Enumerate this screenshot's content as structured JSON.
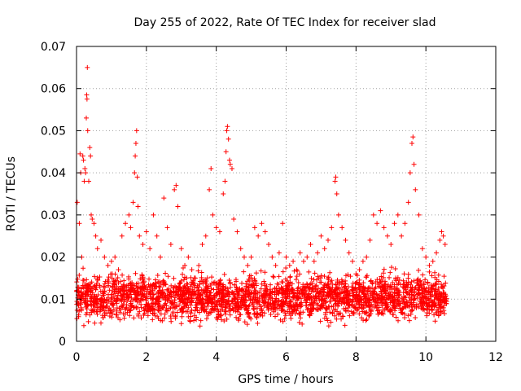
{
  "chart_data": {
    "type": "scatter",
    "title": "Day 255 of 2022, Rate Of TEC Index for receiver slad",
    "xlabel": "GPS time / hours",
    "ylabel": "ROTI / TECUs",
    "xlim": [
      0,
      12
    ],
    "ylim": [
      0,
      0.07
    ],
    "xticks": [
      0,
      2,
      4,
      6,
      8,
      10,
      12
    ],
    "xtick_labels": [
      "0",
      "2",
      "4",
      "6",
      "8",
      "10",
      "12"
    ],
    "yticks": [
      0,
      0.01,
      0.02,
      0.03,
      0.04,
      0.05,
      0.06,
      0.07
    ],
    "ytick_labels": [
      "0",
      "0.01",
      "0.02",
      "0.03",
      "0.04",
      "0.05",
      "0.06",
      "0.07"
    ],
    "grid": true,
    "marker": "+",
    "color": "#ff0000",
    "series": [
      {
        "points": [
          [
            0.02,
            0.033
          ],
          [
            0.05,
            0.012
          ],
          [
            0.08,
            0.028
          ],
          [
            0.1,
            0.0445
          ],
          [
            0.12,
            0.04
          ],
          [
            0.15,
            0.02
          ],
          [
            0.18,
            0.044
          ],
          [
            0.2,
            0.043
          ],
          [
            0.22,
            0.038
          ],
          [
            0.24,
            0.041
          ],
          [
            0.26,
            0.04
          ],
          [
            0.28,
            0.053
          ],
          [
            0.29,
            0.0585
          ],
          [
            0.3,
            0.0575
          ],
          [
            0.31,
            0.065
          ],
          [
            0.32,
            0.05
          ],
          [
            0.35,
            0.038
          ],
          [
            0.38,
            0.046
          ],
          [
            0.4,
            0.044
          ],
          [
            0.42,
            0.03
          ],
          [
            0.45,
            0.029
          ],
          [
            0.5,
            0.028
          ],
          [
            0.55,
            0.025
          ],
          [
            0.6,
            0.022
          ],
          [
            0.7,
            0.024
          ],
          [
            0.8,
            0.02
          ],
          [
            0.9,
            0.018
          ],
          [
            1.0,
            0.019
          ],
          [
            1.1,
            0.02
          ],
          [
            1.2,
            0.017
          ],
          [
            1.3,
            0.025
          ],
          [
            1.4,
            0.028
          ],
          [
            1.5,
            0.03
          ],
          [
            1.55,
            0.027
          ],
          [
            1.62,
            0.033
          ],
          [
            1.66,
            0.04
          ],
          [
            1.68,
            0.044
          ],
          [
            1.7,
            0.047
          ],
          [
            1.72,
            0.05
          ],
          [
            1.74,
            0.039
          ],
          [
            1.76,
            0.032
          ],
          [
            1.8,
            0.025
          ],
          [
            1.9,
            0.023
          ],
          [
            2.0,
            0.026
          ],
          [
            2.1,
            0.022
          ],
          [
            2.2,
            0.03
          ],
          [
            2.3,
            0.025
          ],
          [
            2.4,
            0.02
          ],
          [
            2.5,
            0.034
          ],
          [
            2.6,
            0.027
          ],
          [
            2.7,
            0.023
          ],
          [
            2.8,
            0.036
          ],
          [
            2.85,
            0.037
          ],
          [
            2.9,
            0.032
          ],
          [
            3.0,
            0.022
          ],
          [
            3.1,
            0.018
          ],
          [
            3.2,
            0.02
          ],
          [
            3.3,
            0.017
          ],
          [
            3.4,
            0.015
          ],
          [
            3.5,
            0.018
          ],
          [
            3.6,
            0.023
          ],
          [
            3.7,
            0.025
          ],
          [
            3.8,
            0.036
          ],
          [
            3.85,
            0.041
          ],
          [
            3.9,
            0.03
          ],
          [
            4.0,
            0.027
          ],
          [
            4.1,
            0.026
          ],
          [
            4.2,
            0.035
          ],
          [
            4.25,
            0.038
          ],
          [
            4.28,
            0.045
          ],
          [
            4.3,
            0.05
          ],
          [
            4.32,
            0.051
          ],
          [
            4.35,
            0.048
          ],
          [
            4.38,
            0.043
          ],
          [
            4.4,
            0.042
          ],
          [
            4.45,
            0.041
          ],
          [
            4.5,
            0.029
          ],
          [
            4.6,
            0.026
          ],
          [
            4.7,
            0.022
          ],
          [
            4.8,
            0.02
          ],
          [
            4.9,
            0.018
          ],
          [
            5.0,
            0.02
          ],
          [
            5.1,
            0.027
          ],
          [
            5.2,
            0.025
          ],
          [
            5.3,
            0.028
          ],
          [
            5.4,
            0.026
          ],
          [
            5.5,
            0.023
          ],
          [
            5.6,
            0.02
          ],
          [
            5.7,
            0.018
          ],
          [
            5.8,
            0.021
          ],
          [
            5.9,
            0.028
          ],
          [
            6.0,
            0.02
          ],
          [
            6.1,
            0.018
          ],
          [
            6.2,
            0.019
          ],
          [
            6.3,
            0.017
          ],
          [
            6.4,
            0.021
          ],
          [
            6.5,
            0.019
          ],
          [
            6.6,
            0.02
          ],
          [
            6.7,
            0.023
          ],
          [
            6.8,
            0.019
          ],
          [
            6.9,
            0.021
          ],
          [
            7.0,
            0.025
          ],
          [
            7.1,
            0.022
          ],
          [
            7.2,
            0.024
          ],
          [
            7.3,
            0.027
          ],
          [
            7.4,
            0.038
          ],
          [
            7.42,
            0.039
          ],
          [
            7.45,
            0.035
          ],
          [
            7.5,
            0.03
          ],
          [
            7.6,
            0.027
          ],
          [
            7.7,
            0.024
          ],
          [
            7.8,
            0.021
          ],
          [
            7.9,
            0.019
          ],
          [
            8.0,
            0.016
          ],
          [
            8.1,
            0.017
          ],
          [
            8.2,
            0.019
          ],
          [
            8.3,
            0.02
          ],
          [
            8.4,
            0.024
          ],
          [
            8.5,
            0.03
          ],
          [
            8.6,
            0.028
          ],
          [
            8.7,
            0.031
          ],
          [
            8.8,
            0.027
          ],
          [
            8.9,
            0.025
          ],
          [
            9.0,
            0.023
          ],
          [
            9.1,
            0.028
          ],
          [
            9.2,
            0.03
          ],
          [
            9.3,
            0.025
          ],
          [
            9.4,
            0.028
          ],
          [
            9.5,
            0.033
          ],
          [
            9.55,
            0.04
          ],
          [
            9.6,
            0.047
          ],
          [
            9.63,
            0.0485
          ],
          [
            9.66,
            0.042
          ],
          [
            9.7,
            0.036
          ],
          [
            9.8,
            0.03
          ],
          [
            9.9,
            0.022
          ],
          [
            10.0,
            0.02
          ],
          [
            10.1,
            0.018
          ],
          [
            10.2,
            0.019
          ],
          [
            10.3,
            0.021
          ],
          [
            10.4,
            0.024
          ],
          [
            10.45,
            0.026
          ],
          [
            10.5,
            0.025
          ],
          [
            10.55,
            0.023
          ]
        ]
      }
    ],
    "background_cloud": {
      "x_range": [
        0,
        10.6
      ],
      "y_band": [
        0.003,
        0.018
      ],
      "y_center": 0.0095
    }
  }
}
